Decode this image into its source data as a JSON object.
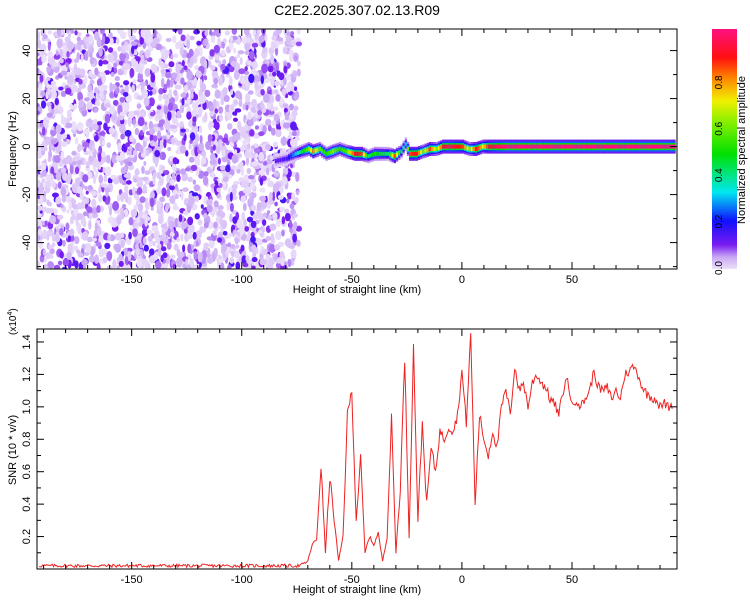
{
  "title": "C2E2.2025.307.02.13.R09",
  "colors": {
    "snr_line": "#ee2222",
    "axis": "#000000"
  },
  "chart_data": [
    {
      "type": "heatmap",
      "title": "C2E2.2025.307.02.13.R09",
      "xlabel": "Height of straight line (km)",
      "ylabel": "Frequency (Hz)",
      "xlim": [
        -193,
        97.7
      ],
      "ylim": [
        -51,
        49
      ],
      "xticks": [
        -150,
        -100,
        -50,
        0,
        50
      ],
      "xtick_labels": [
        "-150",
        "-100",
        "-50",
        "0",
        "50"
      ],
      "yticks": [
        -40,
        -20,
        0,
        20,
        40
      ],
      "ytick_labels": [
        "-40",
        "-20",
        "0",
        "20",
        "40"
      ],
      "noise_region_x": [
        -193,
        -78
      ],
      "noise_amplitude_max": 0.15,
      "ridge": [
        [
          -85,
          -6,
          0.12
        ],
        [
          -80,
          -5,
          0.15
        ],
        [
          -76,
          -3,
          0.3
        ],
        [
          -73,
          -2,
          0.45
        ],
        [
          -70,
          -1,
          0.6
        ],
        [
          -68,
          -2,
          0.8
        ],
        [
          -65,
          -1,
          0.55
        ],
        [
          -62,
          -3,
          0.5
        ],
        [
          -59,
          -2,
          0.6
        ],
        [
          -56,
          -1,
          0.5
        ],
        [
          -53,
          -2,
          0.55
        ],
        [
          -49,
          -3,
          0.9
        ],
        [
          -46,
          -3,
          0.85
        ],
        [
          -43,
          -4,
          0.4
        ],
        [
          -40,
          -3,
          0.5
        ],
        [
          -37,
          -3,
          0.45
        ],
        [
          -34,
          -3,
          0.4
        ],
        [
          -31,
          -4,
          0.85
        ],
        [
          -28,
          -2,
          0.4
        ],
        [
          -26,
          1,
          0.3
        ],
        [
          -24,
          -3,
          0.85
        ],
        [
          -21,
          -3,
          0.9
        ],
        [
          -18,
          -2,
          0.6
        ],
        [
          -15,
          -1,
          0.85
        ],
        [
          -12,
          -1,
          0.6
        ],
        [
          -9,
          0,
          0.9
        ],
        [
          -6,
          0,
          0.95
        ],
        [
          -3,
          0,
          0.9
        ],
        [
          0,
          0,
          0.85
        ],
        [
          3,
          -1,
          0.6
        ],
        [
          6,
          -1,
          0.9
        ],
        [
          9,
          0,
          0.7
        ],
        [
          12,
          0,
          0.9
        ],
        [
          15,
          0,
          0.95
        ],
        [
          20,
          0,
          1.0
        ],
        [
          40,
          0,
          1.0
        ],
        [
          60,
          0,
          1.0
        ],
        [
          80,
          0,
          1.0
        ],
        [
          97,
          0,
          1.0
        ]
      ],
      "colorbar": {
        "label": "Normalized spectral amplitude",
        "ticks": [
          0.0,
          0.2,
          0.4,
          0.6,
          0.8
        ],
        "tick_labels": [
          "0.0",
          "0.2",
          "0.4",
          "0.6",
          "0.8"
        ],
        "range": [
          0,
          1
        ]
      }
    },
    {
      "type": "line",
      "xlabel": "Height of straight line (km)",
      "ylabel": "SNR (10 * v/v)",
      "y_multiplier": "(x10",
      "y_multiplier_exp": "4",
      "y_multiplier_close": ")",
      "xlim": [
        -193,
        97.7
      ],
      "ylim": [
        0,
        1.48
      ],
      "xticks": [
        -150,
        -100,
        -50,
        0,
        50
      ],
      "xtick_labels": [
        "-150",
        "-100",
        "-50",
        "0",
        "50"
      ],
      "yticks": [
        0.2,
        0.4,
        0.6,
        0.8,
        1.0,
        1.2,
        1.4
      ],
      "ytick_labels": [
        "0.2",
        "0.4",
        "0.6",
        "0.8",
        "1.0",
        "1.2",
        "1.4"
      ],
      "x_start": -192,
      "x_step": 2,
      "series": [
        {
          "name": "SNR",
          "values": [
            0.02,
            0.02,
            0.02,
            0.02,
            0.02,
            0.02,
            0.02,
            0.02,
            0.02,
            0.02,
            0.02,
            0.02,
            0.02,
            0.02,
            0.02,
            0.02,
            0.02,
            0.02,
            0.02,
            0.02,
            0.02,
            0.02,
            0.02,
            0.02,
            0.02,
            0.02,
            0.02,
            0.02,
            0.02,
            0.02,
            0.02,
            0.02,
            0.02,
            0.02,
            0.02,
            0.02,
            0.02,
            0.02,
            0.02,
            0.02,
            0.02,
            0.02,
            0.02,
            0.02,
            0.02,
            0.02,
            0.02,
            0.02,
            0.02,
            0.02,
            0.02,
            0.02,
            0.02,
            0.02,
            0.02,
            0.02,
            0.02,
            0.02,
            0.02,
            0.02,
            0.03,
            0.05,
            0.15,
            0.18,
            0.64,
            0.1,
            0.57,
            0.3,
            0.05,
            0.2,
            0.95,
            1.1,
            0.3,
            0.68,
            0.1,
            0.2,
            0.15,
            0.22,
            0.05,
            0.2,
            0.93,
            0.1,
            0.5,
            1.3,
            0.2,
            1.37,
            0.3,
            0.9,
            0.4,
            0.75,
            0.6,
            0.85,
            0.8,
            0.88,
            0.85,
            0.95,
            1.22,
            0.9,
            1.45,
            0.4,
            0.95,
            0.8,
            0.7,
            0.85,
            0.75,
            1.0,
            1.1,
            0.95,
            1.25,
            1.1,
            1.15,
            1.0,
            1.15,
            1.2,
            1.15,
            1.12,
            1.05,
            1.02,
            0.95,
            1.1,
            1.18,
            1.0,
            1.05,
            1.0,
            1.05,
            1.1,
            1.22,
            1.12,
            1.1,
            1.12,
            1.05,
            1.1,
            1.05,
            1.2,
            1.22,
            1.25,
            1.2,
            1.12,
            1.08,
            1.06,
            1.05,
            1.0,
            1.02,
            1.0,
            1.02
          ]
        }
      ]
    }
  ]
}
